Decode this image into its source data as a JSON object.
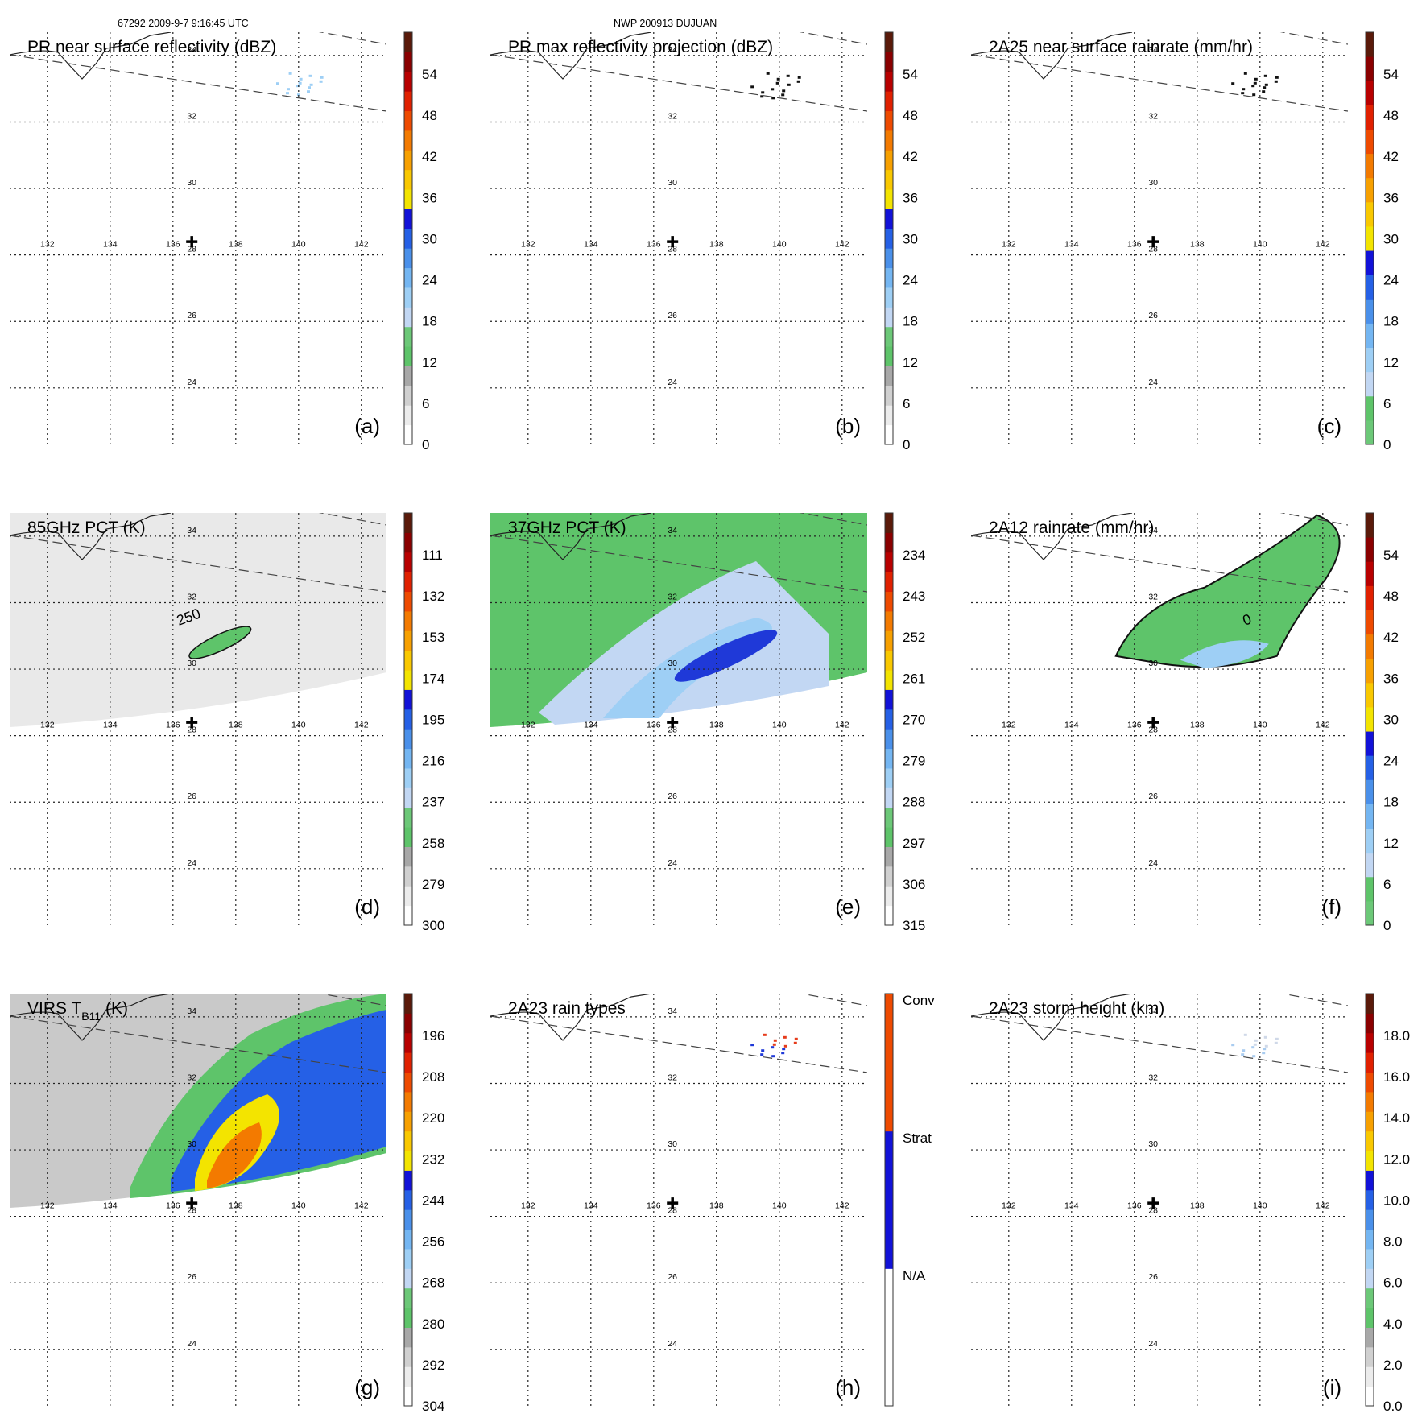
{
  "header": {
    "left": "67292 2009-9-7 9:16:45 UTC",
    "center": "NWP 200913 DUJUAN"
  },
  "lon_labels": [
    "132",
    "134",
    "136",
    "138",
    "140",
    "142"
  ],
  "lat_labels": [
    "34",
    "32",
    "30",
    "28",
    "26",
    "24"
  ],
  "panels": [
    {
      "id": "a",
      "title": "PR near surface reflectivity (dBZ)",
      "label": "(a)",
      "scale": "dbz",
      "ticks": [
        "54",
        "48",
        "42",
        "36",
        "30",
        "24",
        "18",
        "12",
        "6",
        "0"
      ],
      "swath": false,
      "contour": false,
      "features": [
        {
          "lon": 139.8,
          "lat": 33.0,
          "type": "specks",
          "color": "#9ecff5"
        },
        {
          "lon": 140.2,
          "lat": 33.3,
          "type": "specks",
          "color": "#9ecff5"
        }
      ]
    },
    {
      "id": "b",
      "title": "PR max reflectivity projection (dBZ)",
      "label": "(b)",
      "scale": "dbz",
      "ticks": [
        "54",
        "48",
        "42",
        "36",
        "30",
        "24",
        "18",
        "12",
        "6",
        "0"
      ],
      "swath": false,
      "contour": false,
      "features": [
        {
          "lon": 139.6,
          "lat": 32.9,
          "type": "specks",
          "color": "#111111"
        },
        {
          "lon": 140.1,
          "lat": 33.3,
          "type": "specks",
          "color": "#111111"
        }
      ]
    },
    {
      "id": "c",
      "title": "2A25 near surface rainrate (mm/hr)",
      "label": "(c)",
      "scale": "rain",
      "ticks": [
        "54",
        "48",
        "42",
        "36",
        "30",
        "24",
        "18",
        "12",
        "6",
        "0"
      ],
      "swath": false,
      "contour": false,
      "features": [
        {
          "lon": 139.6,
          "lat": 33.0,
          "type": "specks",
          "color": "#111111"
        },
        {
          "lon": 140.0,
          "lat": 33.3,
          "type": "specks",
          "color": "#111111"
        }
      ]
    },
    {
      "id": "d",
      "title": "85GHz PCT (K)",
      "label": "(d)",
      "scale": "pct85",
      "ticks": [
        "111",
        "132",
        "153",
        "174",
        "195",
        "216",
        "237",
        "258",
        "279",
        "300"
      ],
      "swath": true,
      "contour": true,
      "contour_label": "250",
      "features": [
        {
          "lon": 137.5,
          "lat": 30.8,
          "type": "band",
          "color": "#5ec46a"
        }
      ]
    },
    {
      "id": "e",
      "title": "37GHz PCT (K)",
      "label": "(e)",
      "scale": "pct37",
      "ticks": [
        "234",
        "243",
        "252",
        "261",
        "270",
        "279",
        "288",
        "297",
        "306",
        "315"
      ],
      "swath": true,
      "contour": false,
      "features": [
        {
          "lon": 138.3,
          "lat": 30.4,
          "type": "band",
          "color": "#1f39d8"
        }
      ]
    },
    {
      "id": "f",
      "title": "2A12 rainrate (mm/hr)",
      "label": "(f)",
      "scale": "rain",
      "ticks": [
        "54",
        "48",
        "42",
        "36",
        "30",
        "24",
        "18",
        "12",
        "6",
        "0"
      ],
      "swath": false,
      "contour": true,
      "contour_label": "0",
      "features": [
        {
          "lon": 139.0,
          "lat": 31.0,
          "type": "area",
          "color": "#5ec46a"
        }
      ]
    },
    {
      "id": "g",
      "title": "VIRS T",
      "title_sub": "B11",
      "title_tail": " (K)",
      "label": "(g)",
      "scale": "virs",
      "ticks": [
        "196",
        "208",
        "220",
        "232",
        "244",
        "256",
        "268",
        "280",
        "292",
        "304"
      ],
      "swath": true,
      "contour": true,
      "features": [
        {
          "lon": 137.2,
          "lat": 30.6,
          "type": "core",
          "color": "#f6e000"
        }
      ]
    },
    {
      "id": "h",
      "title": "2A23 rain types",
      "label": "(h)",
      "scale": "raintype",
      "ticks": [
        "Conv",
        "Strat",
        "N/A"
      ],
      "swath": false,
      "contour": false,
      "features": [
        {
          "lon": 140.0,
          "lat": 33.3,
          "type": "specks",
          "color": "#e63b1b"
        },
        {
          "lon": 139.6,
          "lat": 33.0,
          "type": "specks",
          "color": "#1f39d8"
        }
      ]
    },
    {
      "id": "i",
      "title": "2A23 storm height (km)",
      "label": "(i)",
      "scale": "height",
      "ticks": [
        "18.0",
        "16.0",
        "14.0",
        "12.0",
        "10.0",
        "8.0",
        "6.0",
        "4.0",
        "2.0",
        "0.0"
      ],
      "swath": false,
      "contour": false,
      "features": [
        {
          "lon": 139.6,
          "lat": 33.0,
          "type": "specks",
          "color": "#a9ccf0"
        },
        {
          "lon": 140.0,
          "lat": 33.3,
          "type": "specks",
          "color": "#cfd8e8"
        }
      ]
    }
  ],
  "scales": {
    "dbz": [
      "#ffffff",
      "#ececec",
      "#d0d0d0",
      "#a8a8a8",
      "#5ec46a",
      "#6cc878",
      "#c2d7f3",
      "#9ecff5",
      "#74b6f2",
      "#4a90ea",
      "#2560e6",
      "#1212d8",
      "#f3e400",
      "#f9c800",
      "#f7a000",
      "#f37a00",
      "#ee4a00",
      "#e02000",
      "#b80000",
      "#8a0000",
      "#5a1a0a"
    ],
    "rain": [
      "#6cc878",
      "#5ec46a",
      "#c2d7f3",
      "#9ecff5",
      "#74b6f2",
      "#4a90ea",
      "#2560e6",
      "#1212d8",
      "#f3e400",
      "#f9c800",
      "#f7a000",
      "#f37a00",
      "#ee4a00",
      "#e02000",
      "#b80000",
      "#8a0000",
      "#5a1a0a"
    ],
    "pct85": [
      "#ffffff",
      "#ececec",
      "#d0d0d0",
      "#a8a8a8",
      "#5ec46a",
      "#6cc878",
      "#c2d7f3",
      "#9ecff5",
      "#74b6f2",
      "#4a90ea",
      "#2560e6",
      "#1212d8",
      "#f3e400",
      "#f9c800",
      "#f7a000",
      "#f37a00",
      "#ee4a00",
      "#e02000",
      "#b80000",
      "#8a0000",
      "#5a1a0a"
    ],
    "pct37": [
      "#ffffff",
      "#ececec",
      "#d0d0d0",
      "#a8a8a8",
      "#5ec46a",
      "#6cc878",
      "#c2d7f3",
      "#9ecff5",
      "#74b6f2",
      "#4a90ea",
      "#2560e6",
      "#1212d8",
      "#f3e400",
      "#f9c800",
      "#f7a000",
      "#f37a00",
      "#ee4a00",
      "#e02000",
      "#b80000",
      "#8a0000",
      "#5a1a0a"
    ],
    "virs": [
      "#ffffff",
      "#ececec",
      "#d0d0d0",
      "#a8a8a8",
      "#5ec46a",
      "#6cc878",
      "#c2d7f3",
      "#9ecff5",
      "#74b6f2",
      "#4a90ea",
      "#2560e6",
      "#1212d8",
      "#f3e400",
      "#f9c800",
      "#f7a000",
      "#f37a00",
      "#ee4a00",
      "#e02000",
      "#b80000",
      "#8a0000",
      "#5a1a0a"
    ],
    "height": [
      "#ffffff",
      "#ececec",
      "#d0d0d0",
      "#a8a8a8",
      "#5ec46a",
      "#6cc878",
      "#c2d7f3",
      "#9ecff5",
      "#74b6f2",
      "#4a90ea",
      "#2560e6",
      "#1212d8",
      "#f3e400",
      "#f9c800",
      "#f7a000",
      "#f37a00",
      "#ee4a00",
      "#e02000",
      "#b80000",
      "#8a0000",
      "#5a1a0a"
    ],
    "raintype": [
      "#ffffff",
      "#1212d8",
      "#ee4a00"
    ]
  },
  "storm_center": {
    "lon": 136.6,
    "lat": 28.4
  },
  "map_extent": {
    "lon_min": 130.8,
    "lon_max": 142.8,
    "lat_min": 22.3,
    "lat_max": 34.7
  }
}
